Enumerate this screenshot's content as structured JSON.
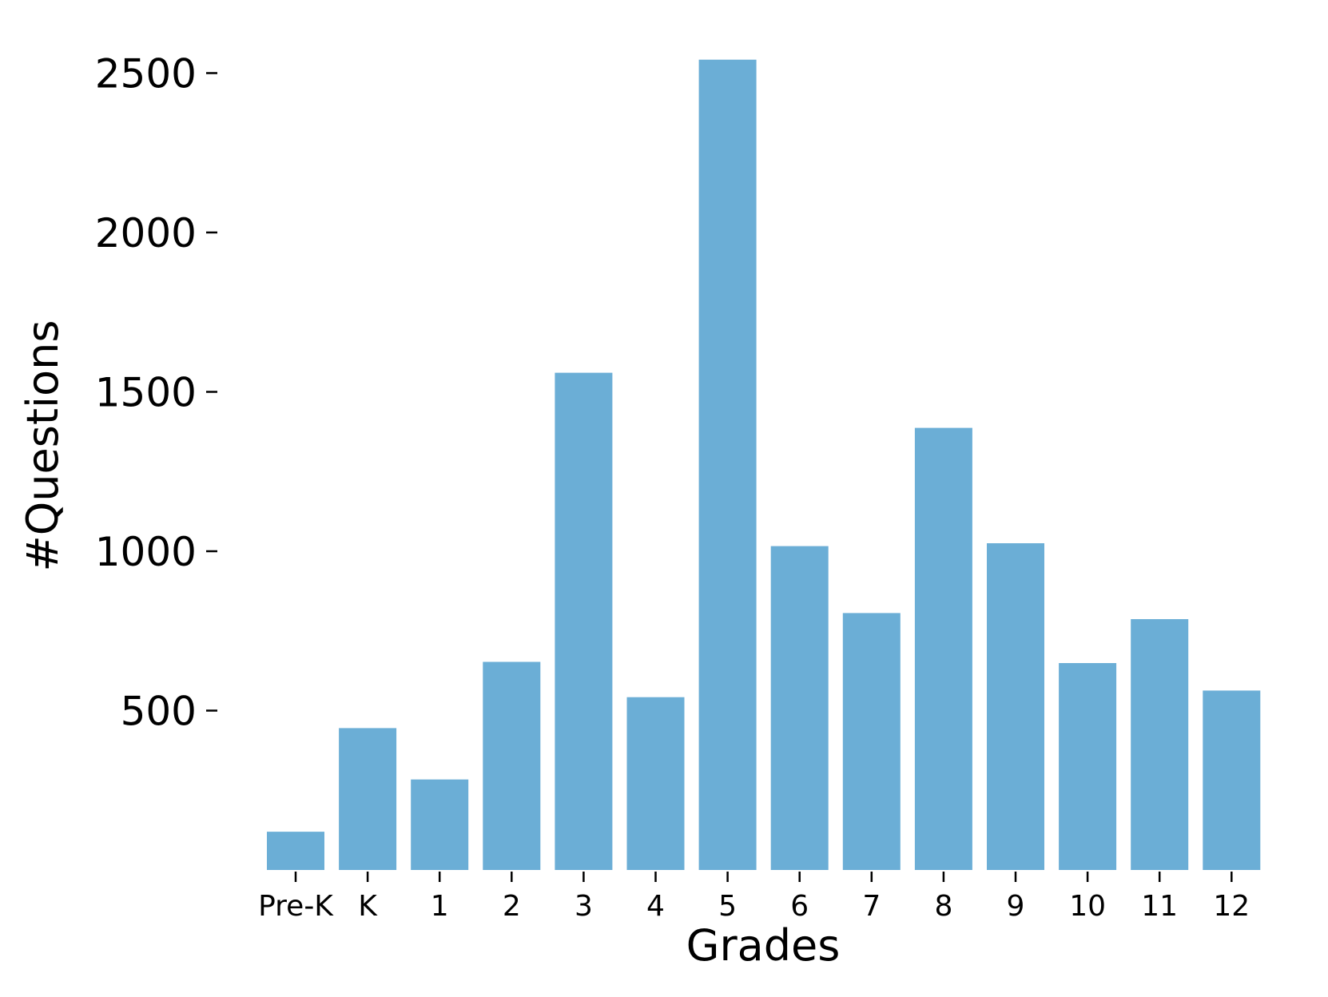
{
  "chart_data": {
    "type": "bar",
    "xlabel": "Grades",
    "ylabel": "#Questions",
    "categories": [
      "Pre-K",
      "K",
      "1",
      "2",
      "3",
      "4",
      "5",
      "6",
      "7",
      "8",
      "9",
      "10",
      "11",
      "12"
    ],
    "values": [
      120,
      445,
      284,
      653,
      1560,
      542,
      2542,
      1016,
      806,
      1387,
      1025,
      649,
      787,
      563
    ],
    "yticks": [
      500,
      1000,
      1500,
      2000,
      2500
    ],
    "ylim": [
      0,
      2600
    ],
    "grid": false,
    "legend": "none",
    "bar_color": "#6baed6"
  }
}
